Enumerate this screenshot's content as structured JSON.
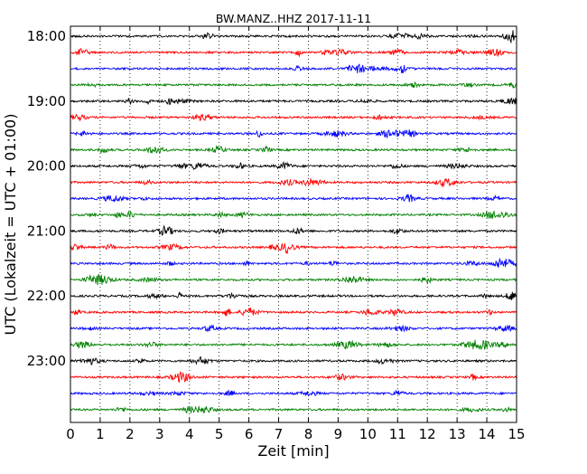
{
  "chart_data": {
    "type": "line",
    "title": "BW.MANZ..HHZ 2017-11-11",
    "xlabel": "Zeit  [min]",
    "ylabel": "UTC (Lokalzeit = UTC + 01:00)",
    "xlim": [
      0,
      15
    ],
    "x_ticks": [
      "0",
      "1",
      "2",
      "3",
      "4",
      "5",
      "6",
      "7",
      "8",
      "9",
      "10",
      "11",
      "12",
      "13",
      "14",
      "15"
    ],
    "y_ticks": [
      {
        "label": "18:00",
        "row": 0
      },
      {
        "label": "19:00",
        "row": 4
      },
      {
        "label": "20:00",
        "row": 8
      },
      {
        "label": "21:00",
        "row": 12
      },
      {
        "label": "22:00",
        "row": 16
      },
      {
        "label": "23:00",
        "row": 20
      }
    ],
    "trace_rows": 24,
    "row_minutes": 15,
    "start_time": "18:00",
    "trace_colors": [
      "#000000",
      "#ff0000",
      "#0000ff",
      "#008000"
    ],
    "grid": "vertical-dotted"
  }
}
